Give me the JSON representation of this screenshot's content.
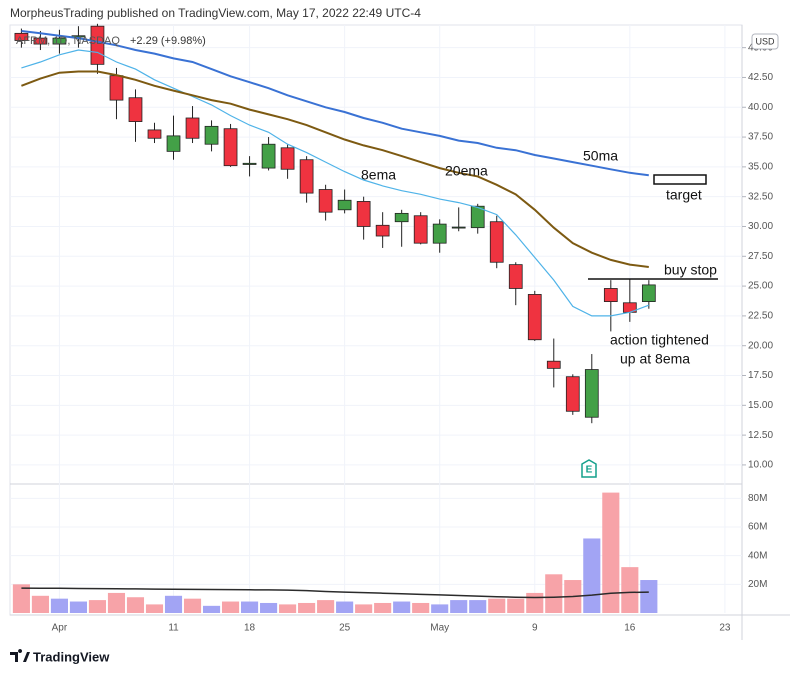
{
  "chart_data": {
    "type": "candlestick",
    "header": "MorpheusTrading published on TradingView.com, May 17, 2022 22:49 UTC-4",
    "legend": {
      "symbol": "AFRM, 1D, NASDAQ",
      "change": "+2.29 (+9.98%)"
    },
    "currency": "USD",
    "up_color": "#43a047",
    "down_color": "#ef3340",
    "open": [
      46.2,
      45.8,
      45.3,
      45.9,
      46.8,
      42.65,
      40.8,
      38.1,
      36.3,
      39.1,
      36.9,
      38.2,
      35.2,
      34.9,
      36.6,
      35.6,
      33.1,
      31.4,
      32.1,
      30.1,
      30.4,
      30.9,
      28.6,
      29.9,
      29.9,
      30.4,
      26.8,
      24.3,
      18.7,
      17.4,
      14.0,
      24.8,
      23.6,
      23.7
    ],
    "high": [
      46.6,
      46.4,
      46.5,
      46.8,
      47.0,
      43.3,
      41.5,
      38.7,
      39.3,
      40.1,
      38.9,
      38.6,
      35.9,
      37.5,
      36.9,
      35.9,
      33.5,
      33.1,
      32.5,
      31.2,
      31.4,
      31.2,
      30.6,
      31.6,
      31.9,
      30.9,
      27.0,
      24.6,
      20.6,
      17.6,
      19.3,
      25.5,
      25.6,
      25.5
    ],
    "low": [
      45.0,
      44.8,
      44.5,
      45.0,
      42.8,
      39.0,
      37.1,
      37.0,
      35.6,
      37.0,
      36.3,
      35.0,
      34.2,
      34.7,
      34.0,
      32.0,
      30.5,
      31.1,
      28.9,
      28.2,
      28.3,
      28.5,
      27.8,
      29.6,
      29.4,
      26.5,
      23.4,
      20.4,
      16.5,
      14.2,
      13.5,
      21.2,
      22.0,
      23.1
    ],
    "close": [
      45.6,
      45.3,
      45.8,
      46.0,
      43.6,
      40.6,
      38.8,
      37.4,
      37.6,
      37.4,
      38.4,
      35.1,
      35.3,
      36.9,
      34.8,
      32.8,
      31.2,
      32.2,
      30.0,
      29.2,
      31.1,
      28.6,
      30.2,
      29.95,
      31.7,
      27.0,
      24.8,
      20.5,
      18.1,
      14.5,
      18.0,
      23.7,
      22.8,
      25.1
    ],
    "lines": [
      {
        "name": "8ema",
        "color": "#4fb3e8",
        "values": [
          43.3,
          43.8,
          44.4,
          44.8,
          44.6,
          43.8,
          43.2,
          42.3,
          41.6,
          40.9,
          40.2,
          39.3,
          38.5,
          37.9,
          36.9,
          36.2,
          35.4,
          34.6,
          33.9,
          33.4,
          33.0,
          32.7,
          32.3,
          32.0,
          31.6,
          31.0,
          29.3,
          27.4,
          25.5,
          23.3,
          22.5,
          22.5,
          22.8,
          23.4
        ]
      },
      {
        "name": "20ema",
        "color": "#7d5a12",
        "values": [
          41.8,
          42.4,
          42.9,
          43.0,
          43.0,
          42.7,
          42.3,
          41.8,
          41.4,
          41.0,
          40.6,
          40.3,
          39.8,
          39.4,
          39.0,
          38.5,
          37.9,
          37.3,
          36.8,
          36.4,
          35.9,
          35.4,
          34.9,
          34.5,
          34.2,
          33.5,
          32.7,
          31.4,
          29.9,
          28.6,
          27.8,
          27.2,
          26.8,
          26.6
        ]
      },
      {
        "name": "50ma",
        "color": "#3a72d4",
        "values": [
          46.4,
          46.2,
          46.0,
          45.8,
          45.5,
          45.2,
          44.8,
          44.5,
          44.1,
          43.8,
          43.2,
          42.6,
          42.1,
          41.6,
          41.0,
          40.5,
          40.0,
          39.6,
          39.1,
          38.7,
          38.2,
          37.9,
          37.6,
          37.2,
          37.0,
          36.6,
          36.4,
          36.0,
          35.7,
          35.4,
          35.1,
          34.8,
          34.5,
          34.3
        ]
      }
    ],
    "ylim": [
      8.4,
      46.9
    ],
    "yticks": [
      {
        "value": 10,
        "label": "10.00"
      },
      {
        "value": 12.5,
        "label": "12.50"
      },
      {
        "value": 15,
        "label": "15.00"
      },
      {
        "value": 17.5,
        "label": "17.50"
      },
      {
        "value": 20,
        "label": "20.00"
      },
      {
        "value": 22.5,
        "label": "22.50"
      },
      {
        "value": 25,
        "label": "25.00"
      },
      {
        "value": 27.5,
        "label": "27.50"
      },
      {
        "value": 30,
        "label": "30.00"
      },
      {
        "value": 32.5,
        "label": "32.50"
      },
      {
        "value": 35,
        "label": "35.00"
      },
      {
        "value": 37.5,
        "label": "37.50"
      },
      {
        "value": 40,
        "label": "40.00"
      },
      {
        "value": 42.5,
        "label": "42.50"
      },
      {
        "value": 45,
        "label": "45.00"
      }
    ],
    "xlim": [
      -0.6,
      37.9
    ],
    "xticks": [
      {
        "value": 2,
        "label": "Apr"
      },
      {
        "value": 8,
        "label": "11"
      },
      {
        "value": 12,
        "label": "18"
      },
      {
        "value": 17,
        "label": "25"
      },
      {
        "value": 22,
        "label": "May"
      },
      {
        "value": 27,
        "label": "9"
      },
      {
        "value": 32,
        "label": "16"
      },
      {
        "value": 37,
        "label": "23"
      }
    ],
    "volume": {
      "up_color": "#a2a4f4",
      "down_color": "#f7a3a8",
      "ma_color": "#2b2b2b",
      "values": [
        20000000,
        12000000,
        10000000,
        8000000,
        9000000,
        14000000,
        11000000,
        6000000,
        12000000,
        10000000,
        5000000,
        8000000,
        8000000,
        7000000,
        6000000,
        7000000,
        9000000,
        8000000,
        6000000,
        7000000,
        8000000,
        7000000,
        6000000,
        9000000,
        9000000,
        10000000,
        10000000,
        14000000,
        27000000,
        23000000,
        52000000,
        84000000,
        32000000,
        23000000
      ],
      "ma": [
        17400000,
        17300000,
        17200000,
        17100000,
        17000000,
        16900000,
        16800000,
        16700000,
        16600000,
        16500000,
        16400000,
        16300000,
        16200000,
        16100000,
        16000000,
        15600000,
        15000000,
        14600000,
        14200000,
        13800000,
        13400000,
        13000000,
        12600000,
        12200000,
        11800000,
        11400000,
        11000000,
        10800000,
        11000000,
        11500000,
        12500000,
        13800000,
        14400000,
        14600000
      ],
      "ylim": [
        0,
        90000000
      ],
      "yticks": [
        {
          "value": 20000000,
          "label": "20M"
        },
        {
          "value": 40000000,
          "label": "40M"
        },
        {
          "value": 60000000,
          "label": "60M"
        },
        {
          "value": 80000000,
          "label": "80M"
        }
      ]
    },
    "annotations": [
      "target",
      "buy stop",
      "action tightened",
      "up at 8ema"
    ],
    "earnings_marker": "E",
    "footer": "TradingView"
  }
}
